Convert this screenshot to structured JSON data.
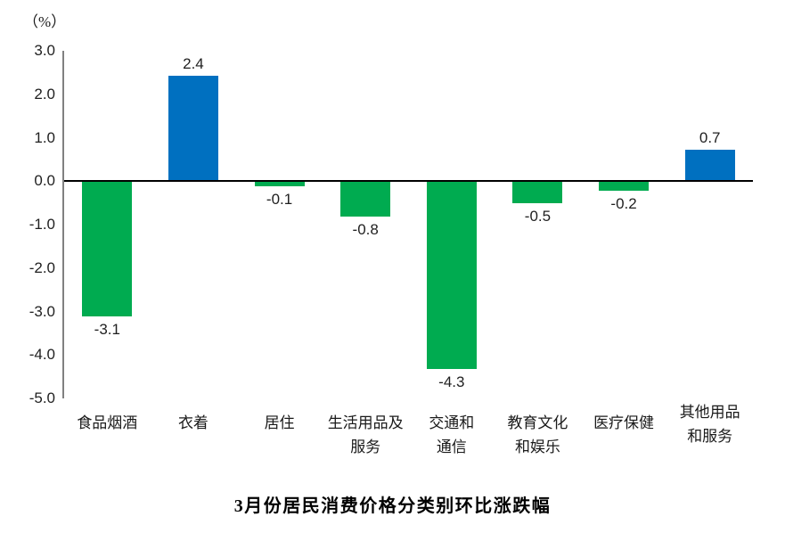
{
  "unit_label": "（%）",
  "title": "3月份居民消费价格分类别环比涨跌幅",
  "colors": {
    "positive_bar": "#0070C0",
    "negative_bar": "#00AB50",
    "zero_line": "#000000",
    "axis_line": "#808080",
    "text": "#1F1F1F"
  },
  "chart_data": {
    "type": "bar",
    "title": "3月份居民消费价格分类别环比涨跌幅",
    "unit_label": "（%）",
    "ylabel": "%",
    "xlabel": "",
    "categories": [
      "食品烟酒",
      "衣着",
      "居住",
      "生活用品及服务",
      "交通和通信",
      "教育文化和娱乐",
      "医疗保健",
      "其他用品和服务"
    ],
    "category_label_lines": [
      [
        "食品烟酒"
      ],
      [
        "衣着"
      ],
      [
        "居住"
      ],
      [
        "生活用品及",
        "服务"
      ],
      [
        "交通和",
        "通信"
      ],
      [
        "教育文化",
        "和娱乐"
      ],
      [
        "医疗保健"
      ],
      [
        "其他用品",
        "和服务"
      ]
    ],
    "values": [
      -3.1,
      2.4,
      -0.1,
      -0.8,
      -4.3,
      -0.5,
      -0.2,
      0.7
    ],
    "value_labels": [
      "-3.1",
      "2.4",
      "-0.1",
      "-0.8",
      "-4.3",
      "-0.5",
      "-0.2",
      "0.7"
    ],
    "y_ticks": [
      3.0,
      2.0,
      1.0,
      0.0,
      -1.0,
      -2.0,
      -3.0,
      -4.0,
      -5.0
    ],
    "y_tick_labels": [
      "3.0",
      "2.0",
      "1.0",
      "0.0",
      "-1.0",
      "-2.0",
      "-3.0",
      "-4.0",
      "-5.0"
    ],
    "ylim": [
      -5.0,
      3.0
    ],
    "grid": false,
    "legend": false,
    "positive_color": "#0070C0",
    "negative_color": "#00AB50"
  }
}
